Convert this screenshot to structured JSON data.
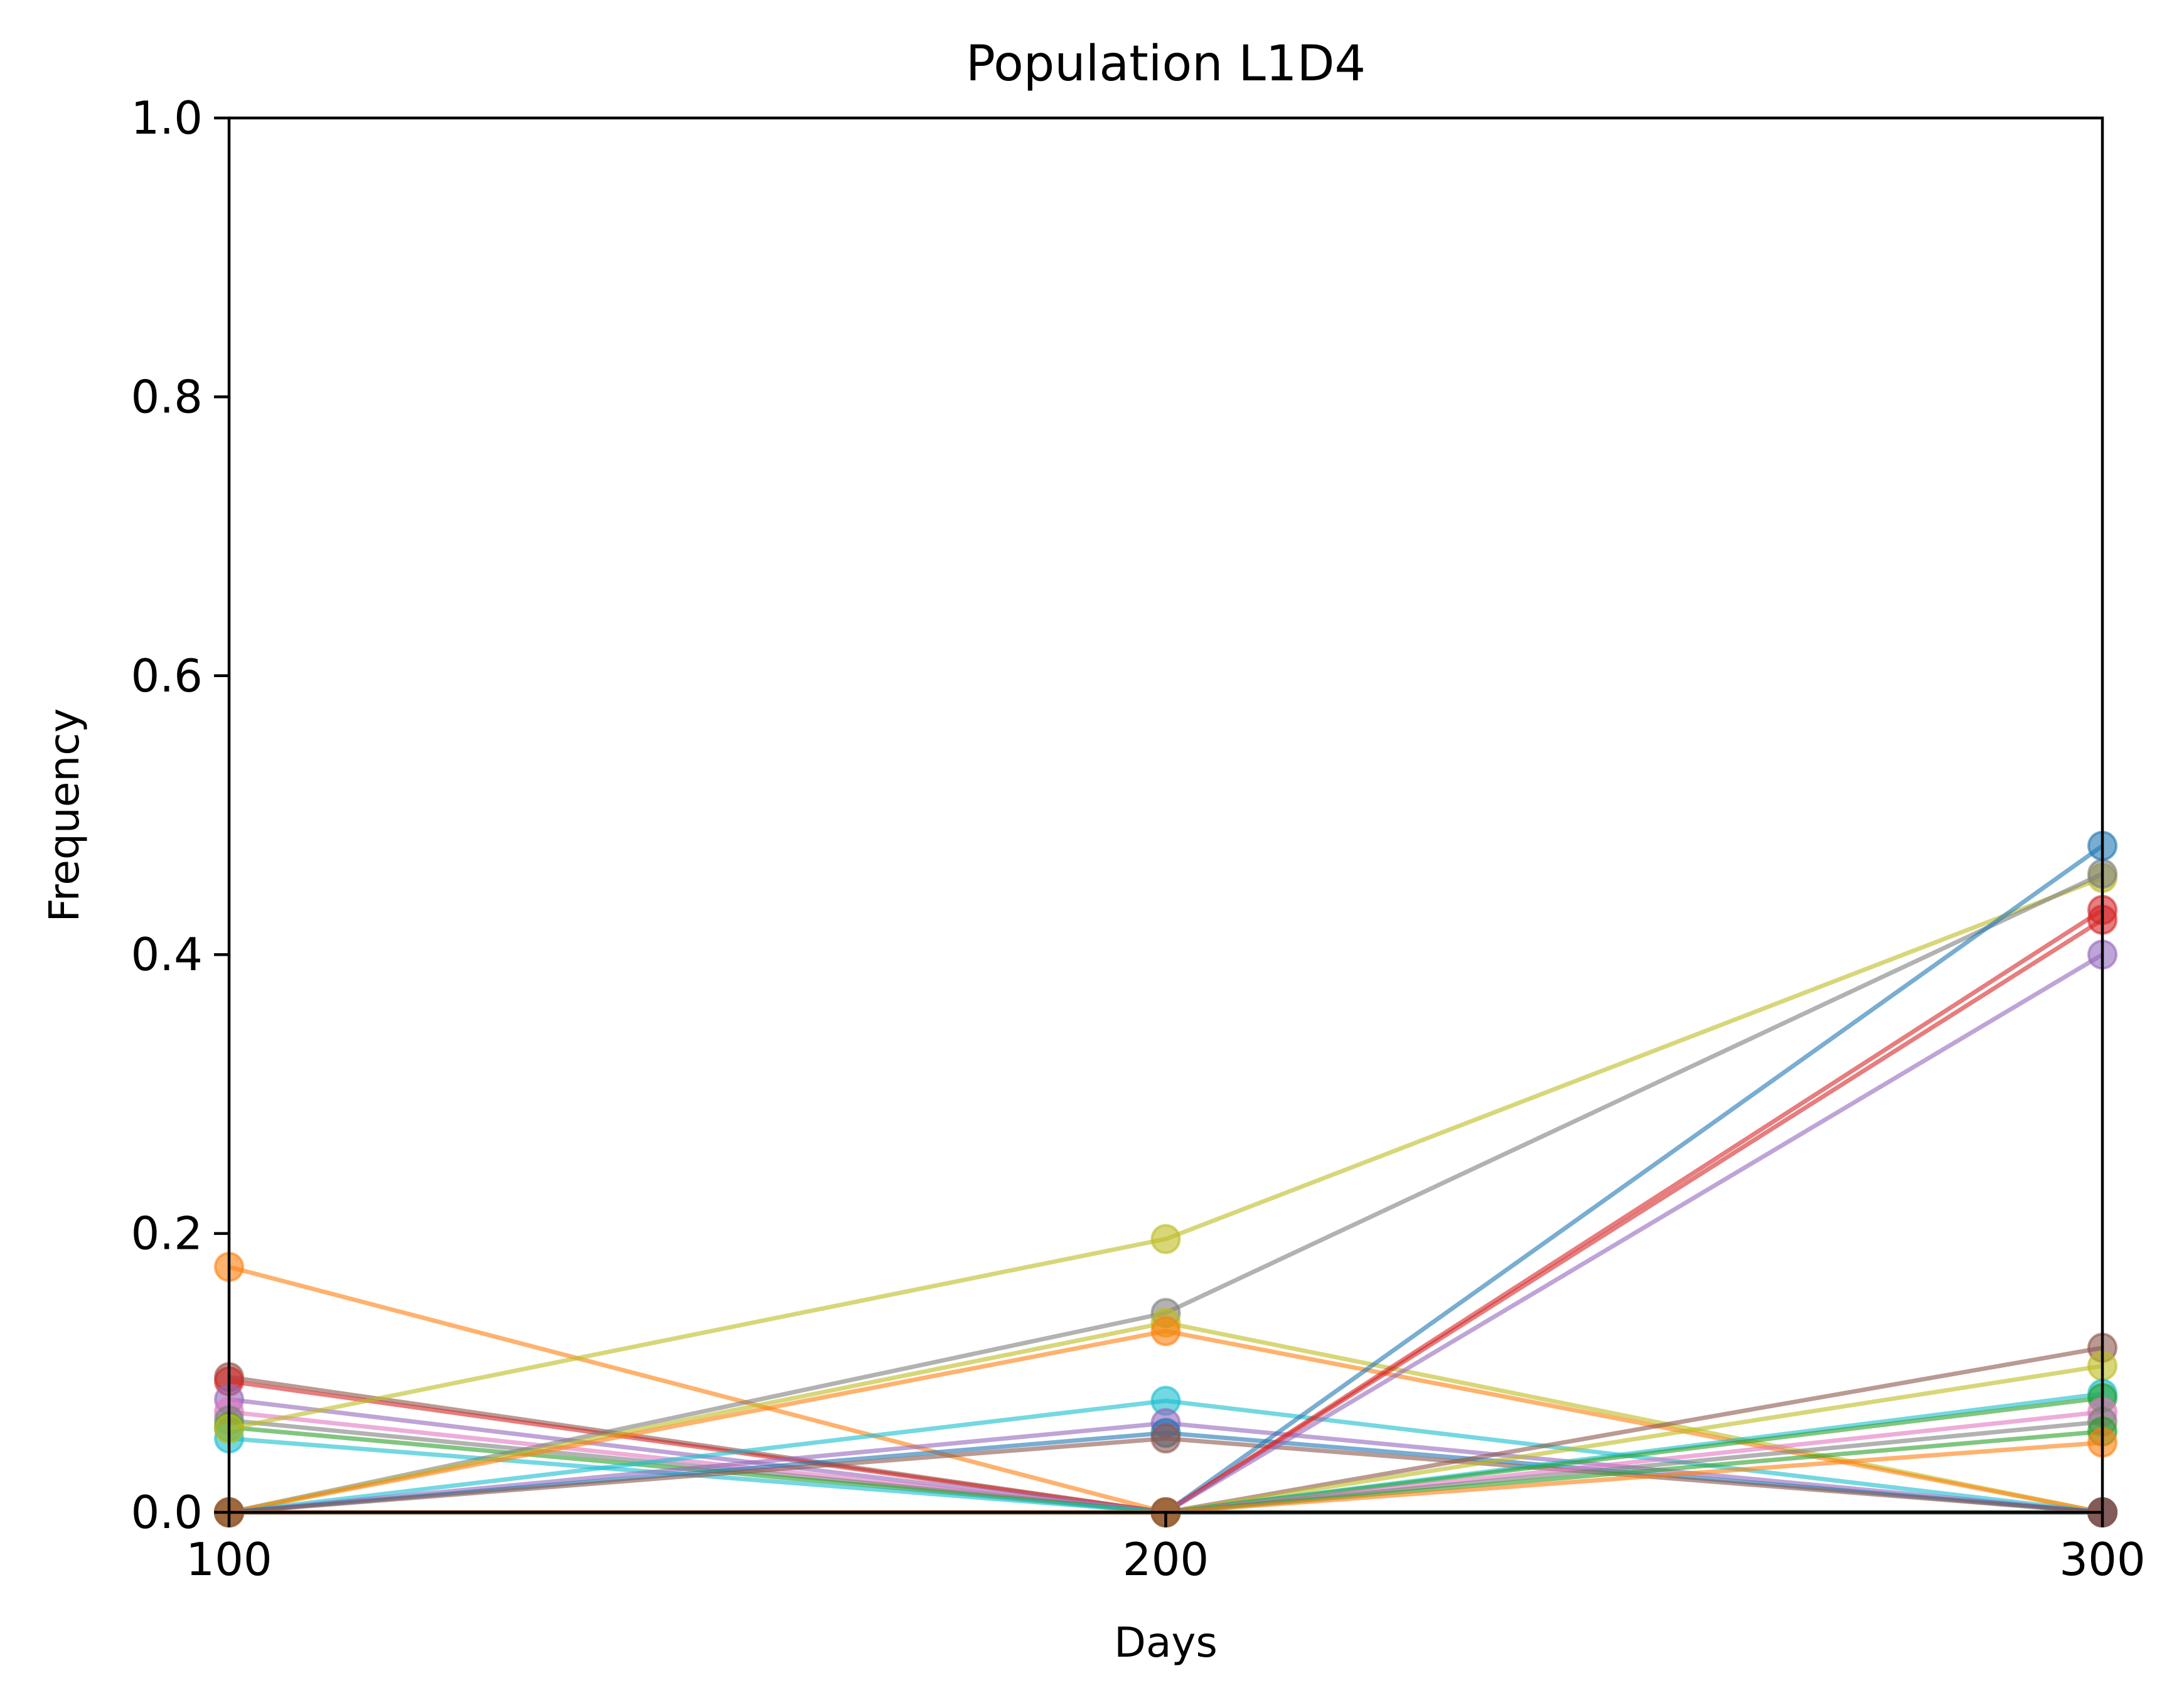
{
  "chart_data": {
    "type": "line",
    "title": "Population L1D4",
    "xlabel": "Days",
    "ylabel": "Frequency",
    "xlim": [
      100,
      300
    ],
    "ylim": [
      0.0,
      1.0
    ],
    "xticks": [
      {
        "value": 100,
        "label": "100"
      },
      {
        "value": 200,
        "label": "200"
      },
      {
        "value": 300,
        "label": "300"
      }
    ],
    "yticks": [
      {
        "value": 0.0,
        "label": "0.0"
      },
      {
        "value": 0.2,
        "label": "0.2"
      },
      {
        "value": 0.4,
        "label": "0.4"
      },
      {
        "value": 0.6,
        "label": "0.6"
      },
      {
        "value": 0.8,
        "label": "0.8"
      },
      {
        "value": 1.0,
        "label": "1.0"
      }
    ],
    "grid": false,
    "legend": "none",
    "x": [
      100,
      200,
      300
    ],
    "series": [
      {
        "color": "#ff7f0e",
        "values": [
          0.176,
          0.0,
          0.0
        ]
      },
      {
        "color": "#8c564b",
        "values": [
          0.097,
          0.0,
          0.0
        ]
      },
      {
        "color": "#d62728",
        "values": [
          0.094,
          0.0,
          0.0
        ]
      },
      {
        "color": "#9467bd",
        "values": [
          0.081,
          0.0,
          0.0
        ]
      },
      {
        "color": "#e377c2",
        "values": [
          0.072,
          0.0,
          0.0
        ]
      },
      {
        "color": "#7f7f7f",
        "values": [
          0.066,
          0.0,
          0.0
        ]
      },
      {
        "color": "#2ca02c",
        "values": [
          0.061,
          0.0,
          0.0
        ]
      },
      {
        "color": "#17becf",
        "values": [
          0.053,
          0.0,
          0.0
        ]
      },
      {
        "color": "#bcbd22",
        "values": [
          0.06,
          0.196,
          0.455
        ]
      },
      {
        "color": "#7f7f7f",
        "values": [
          0.0,
          0.143,
          0.458
        ]
      },
      {
        "color": "#bcbd22",
        "values": [
          0.0,
          0.136,
          0.0
        ]
      },
      {
        "color": "#ff7f0e",
        "values": [
          0.0,
          0.13,
          0.0
        ]
      },
      {
        "color": "#17becf",
        "values": [
          0.0,
          0.08,
          0.0
        ]
      },
      {
        "color": "#9467bd",
        "values": [
          0.0,
          0.064,
          0.0
        ]
      },
      {
        "color": "#1f77b4",
        "values": [
          0.0,
          0.057,
          0.0
        ]
      },
      {
        "color": "#8c564b",
        "values": [
          0.0,
          0.053,
          0.0
        ]
      },
      {
        "color": "#1f77b4",
        "values": [
          0.0,
          0.0,
          0.478
        ]
      },
      {
        "color": "#d62728",
        "values": [
          0.0,
          0.0,
          0.432
        ]
      },
      {
        "color": "#d62728",
        "values": [
          0.0,
          0.0,
          0.425
        ]
      },
      {
        "color": "#9467bd",
        "values": [
          0.0,
          0.0,
          0.4
        ]
      },
      {
        "color": "#8c564b",
        "values": [
          0.0,
          0.0,
          0.118
        ]
      },
      {
        "color": "#bcbd22",
        "values": [
          0.0,
          0.0,
          0.105
        ]
      },
      {
        "color": "#17becf",
        "values": [
          0.0,
          0.0,
          0.085
        ]
      },
      {
        "color": "#2ca02c",
        "values": [
          0.0,
          0.0,
          0.082
        ]
      },
      {
        "color": "#e377c2",
        "values": [
          0.0,
          0.0,
          0.072
        ]
      },
      {
        "color": "#7f7f7f",
        "values": [
          0.0,
          0.0,
          0.065
        ]
      },
      {
        "color": "#2ca02c",
        "values": [
          0.0,
          0.0,
          0.058
        ]
      },
      {
        "color": "#ff7f0e",
        "values": [
          0.0,
          0.0,
          0.05
        ]
      },
      {
        "color": "#8c564b",
        "values": [
          0.0,
          0.0,
          0.0
        ]
      }
    ]
  }
}
